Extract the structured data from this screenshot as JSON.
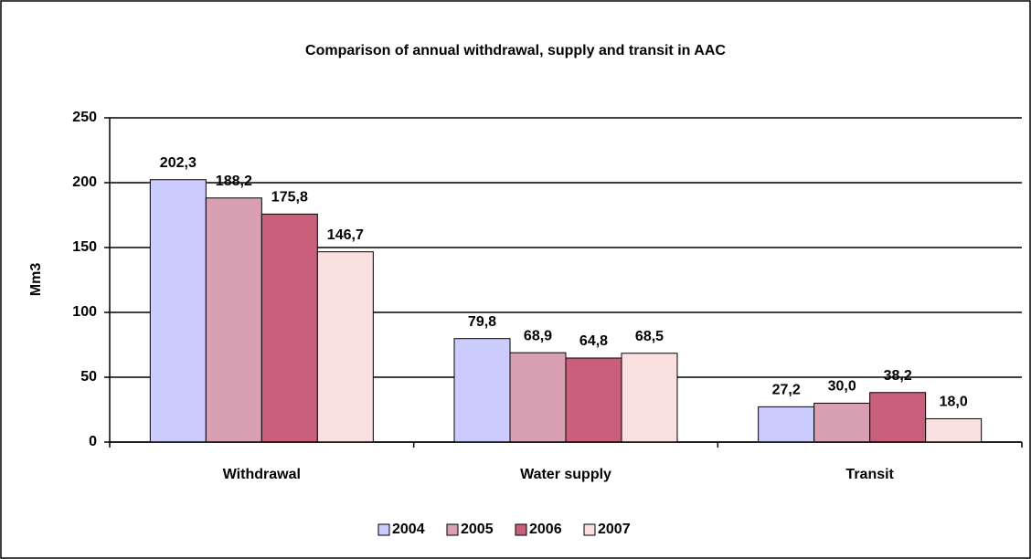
{
  "chart_data": {
    "type": "bar",
    "title": "Comparison of annual withdrawal, supply and transit in AAC",
    "y_label": "Mm3",
    "categories": [
      "Withdrawal",
      "Water supply",
      "Transit"
    ],
    "series": [
      {
        "name": "2004",
        "color": "#ccccff",
        "values": [
          202.3,
          79.8,
          27.2
        ],
        "value_labels": [
          "202,3",
          "79,8",
          "27,2"
        ]
      },
      {
        "name": "2005",
        "color": "#d9a0b4",
        "values": [
          188.2,
          68.9,
          30.0
        ],
        "value_labels": [
          "188,2",
          "68,9",
          "30,0"
        ]
      },
      {
        "name": "2006",
        "color": "#c8607c",
        "values": [
          175.8,
          64.8,
          38.2
        ],
        "value_labels": [
          "175,8",
          "64,8",
          "38,2"
        ]
      },
      {
        "name": "2007",
        "color": "#fbe0e0",
        "values": [
          146.7,
          68.5,
          18.0
        ],
        "value_labels": [
          "146,7",
          "68,5",
          "18,0"
        ]
      }
    ],
    "ylim": [
      0,
      250
    ],
    "yticks": [
      0,
      50,
      100,
      150,
      200,
      250
    ],
    "grid": true
  }
}
